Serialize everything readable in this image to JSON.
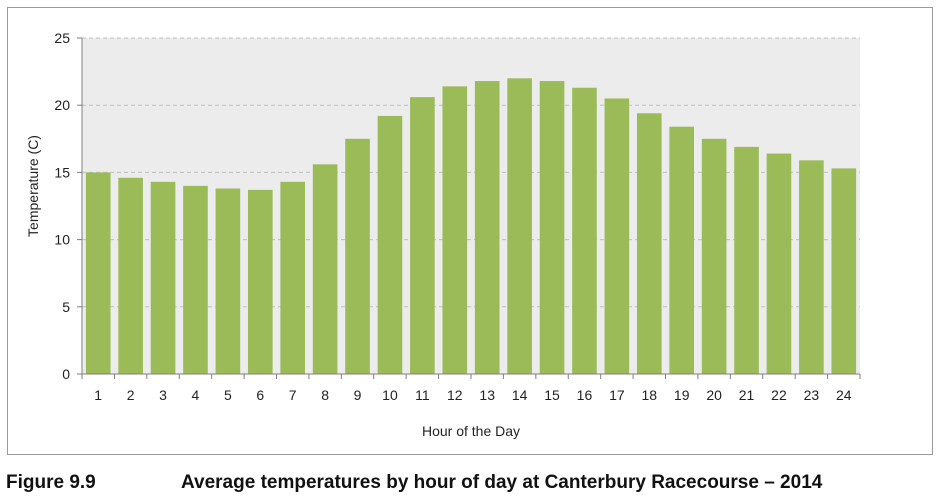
{
  "chart_data": {
    "type": "bar",
    "categories": [
      "1",
      "2",
      "3",
      "4",
      "5",
      "6",
      "7",
      "8",
      "9",
      "10",
      "11",
      "12",
      "13",
      "14",
      "15",
      "16",
      "17",
      "18",
      "19",
      "20",
      "21",
      "22",
      "23",
      "24"
    ],
    "values": [
      15.0,
      14.6,
      14.3,
      14.0,
      13.8,
      13.7,
      14.3,
      15.6,
      17.5,
      19.2,
      20.6,
      21.4,
      21.8,
      22.0,
      21.8,
      21.3,
      20.5,
      19.4,
      18.4,
      17.5,
      16.9,
      16.4,
      15.9,
      15.3
    ],
    "xlabel": "Hour of the Day",
    "ylabel": "Temperature  (C)",
    "ylim": [
      0,
      25
    ],
    "yticks": [
      0,
      5,
      10,
      15,
      20,
      25
    ],
    "grid": true,
    "legend": "none",
    "bar_color": "#9bbb59",
    "plot_background": "#ececec",
    "gridline_color": "#bfbfbf"
  },
  "caption": {
    "label": "Figure 9.9",
    "text": "Average temperatures by hour of day at Canterbury Racecourse – 2014"
  }
}
